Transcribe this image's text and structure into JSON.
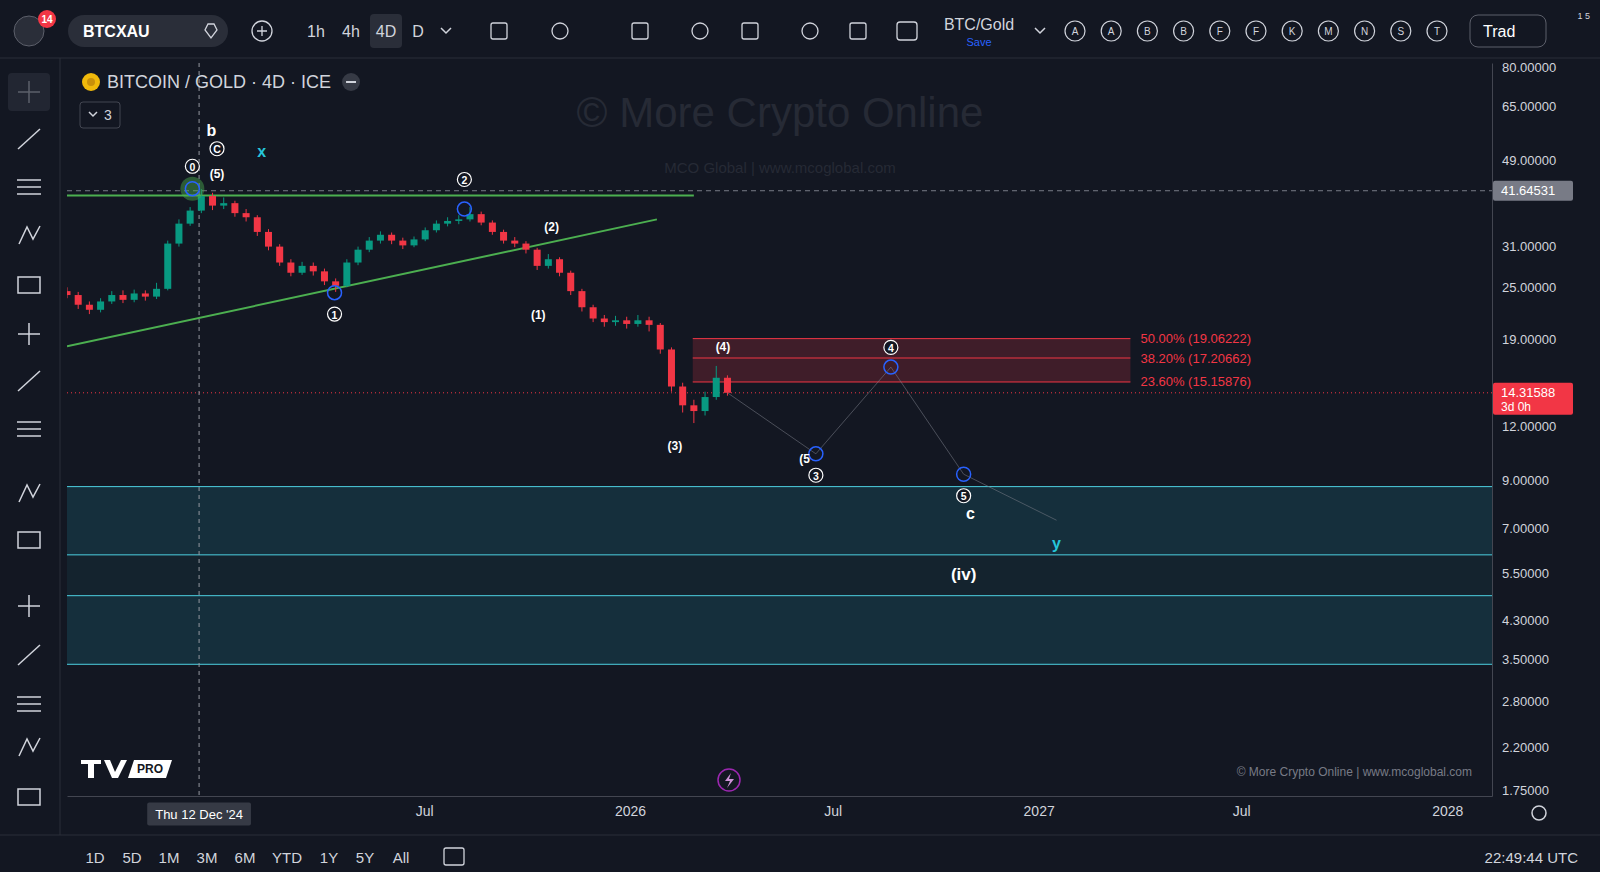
{
  "chart_data": {
    "type": "candlestick",
    "title": "BITCOIN / GOLD · 4D · ICE",
    "log": "y",
    "grid": false,
    "x": [
      "2024-08-16",
      "2024-08-26",
      "2024-09-05",
      "2024-09-15",
      "2024-09-25",
      "2024-10-05",
      "2024-10-15",
      "2024-10-25",
      "2024-11-04",
      "2024-11-14",
      "2024-11-24",
      "2024-12-04",
      "2024-12-14",
      "2024-12-24",
      "2025-01-03",
      "2025-01-13",
      "2025-01-23",
      "2025-02-02",
      "2025-02-12",
      "2025-02-22",
      "2025-03-04",
      "2025-03-14",
      "2025-03-24",
      "2025-04-03",
      "2025-04-13",
      "2025-04-23",
      "2025-05-03",
      "2025-05-13",
      "2025-05-23",
      "2025-06-02",
      "2025-06-12",
      "2025-06-22",
      "2025-07-02",
      "2025-07-12",
      "2025-07-22",
      "2025-08-01",
      "2025-08-11",
      "2025-08-21",
      "2025-08-31",
      "2025-09-10",
      "2025-09-20",
      "2025-09-30",
      "2025-10-10",
      "2025-10-20",
      "2025-10-30",
      "2025-11-09",
      "2025-11-19",
      "2025-11-29",
      "2025-12-09",
      "2025-12-19",
      "2025-12-29",
      "2026-01-08",
      "2026-01-18",
      "2026-01-28",
      "2026-02-07",
      "2026-02-17",
      "2026-02-27",
      "2026-03-09",
      "2026-03-19",
      "2026-03-29"
    ],
    "open": [
      24.5,
      24.0,
      22.8,
      22.2,
      23.2,
      24.0,
      23.4,
      24.2,
      23.8,
      24.8,
      31.5,
      35.0,
      37.5,
      40.5,
      38.5,
      39.0,
      37.0,
      36.2,
      33.5,
      31.0,
      28.5,
      27.0,
      28.0,
      27.2,
      25.8,
      25.2,
      28.5,
      30.5,
      32.0,
      33.0,
      32.0,
      31.2,
      32.2,
      33.8,
      35.0,
      35.5,
      35.8,
      36.8,
      35.2,
      33.5,
      32.0,
      31.5,
      30.5,
      28.0,
      29.0,
      27.0,
      24.5,
      22.5,
      21.2,
      20.8,
      21.0,
      20.6,
      21.0,
      20.5,
      18.0,
      14.8,
      13.4,
      13.0,
      14.0,
      15.5
    ],
    "high": [
      25.0,
      24.4,
      23.2,
      23.6,
      24.5,
      24.6,
      24.7,
      24.6,
      25.6,
      32.0,
      35.8,
      38.2,
      42.0,
      41.2,
      40.2,
      39.5,
      37.8,
      36.6,
      34.0,
      31.4,
      29.0,
      28.6,
      28.5,
      27.6,
      26.2,
      29.0,
      31.0,
      32.6,
      33.6,
      33.4,
      32.5,
      32.7,
      34.3,
      35.6,
      36.2,
      36.6,
      38.2,
      37.3,
      35.6,
      33.9,
      32.6,
      31.9,
      30.8,
      29.8,
      29.3,
      27.3,
      24.8,
      22.8,
      21.6,
      21.5,
      21.4,
      21.6,
      21.4,
      20.7,
      18.2,
      15.1,
      13.8,
      14.4,
      16.5,
      15.7
    ],
    "low": [
      23.6,
      22.3,
      21.7,
      21.9,
      22.9,
      23.0,
      23.1,
      23.3,
      23.5,
      24.6,
      31.0,
      34.6,
      37.0,
      37.6,
      37.8,
      36.3,
      35.4,
      32.8,
      30.4,
      28.0,
      26.5,
      26.7,
      26.6,
      25.3,
      24.4,
      25.0,
      28.1,
      30.1,
      31.5,
      31.4,
      30.6,
      30.9,
      31.9,
      33.4,
      34.5,
      34.9,
      35.4,
      34.7,
      33.0,
      31.5,
      30.9,
      29.9,
      27.4,
      27.6,
      26.5,
      24.0,
      22.0,
      20.8,
      20.3,
      20.4,
      20.1,
      20.3,
      19.8,
      17.6,
      14.4,
      12.9,
      12.2,
      12.7,
      13.8,
      14.1
    ],
    "close": [
      24.0,
      22.8,
      22.2,
      23.2,
      24.0,
      23.4,
      24.2,
      23.8,
      24.8,
      31.5,
      35.0,
      37.5,
      40.5,
      38.5,
      39.0,
      37.0,
      36.2,
      33.5,
      31.0,
      28.5,
      27.0,
      28.0,
      27.2,
      25.8,
      25.2,
      28.5,
      30.5,
      32.0,
      33.0,
      32.0,
      31.2,
      32.2,
      33.8,
      35.0,
      35.5,
      35.8,
      36.8,
      35.2,
      33.5,
      32.0,
      31.5,
      30.5,
      28.0,
      29.0,
      27.0,
      24.5,
      22.5,
      21.2,
      20.8,
      21.0,
      20.6,
      21.0,
      20.5,
      18.0,
      14.8,
      13.4,
      13.0,
      14.0,
      15.5,
      14.31588
    ],
    "xlim": [
      "2024-08-16",
      "2028-02-10"
    ],
    "xticks": [
      {
        "value": "2025-07-01",
        "label": "Jul"
      },
      {
        "value": "2026-01-01",
        "label": "2026"
      },
      {
        "value": "2026-07-01",
        "label": "Jul"
      },
      {
        "value": "2027-01-01",
        "label": "2027"
      },
      {
        "value": "2027-07-01",
        "label": "Jul"
      },
      {
        "value": "2028-01-01",
        "label": "2028"
      }
    ],
    "ylim": [
      1.7,
      81.8
    ],
    "yticks": [
      {
        "value": 1.75,
        "label": "1.75000"
      },
      {
        "value": 2.2,
        "label": "2.20000"
      },
      {
        "value": 2.8,
        "label": "2.80000"
      },
      {
        "value": 3.5,
        "label": "3.50000"
      },
      {
        "value": 4.3,
        "label": "4.30000"
      },
      {
        "value": 5.5,
        "label": "5.50000"
      },
      {
        "value": 7,
        "label": "7.00000"
      },
      {
        "value": 9,
        "label": "9.00000"
      },
      {
        "value": 12,
        "label": "12.00000"
      },
      {
        "value": 19,
        "label": "19.00000"
      },
      {
        "value": 25,
        "label": "25.00000"
      },
      {
        "value": 31,
        "label": "31.00000"
      },
      {
        "value": 49,
        "label": "49.00000"
      },
      {
        "value": 65,
        "label": "65.00000"
      },
      {
        "value": 80,
        "label": "80.00000"
      }
    ],
    "levels": [
      {
        "value": 41.64531,
        "label": "41.64531",
        "color": "#787b86",
        "line_style": "dashed"
      },
      {
        "value": 14.31588,
        "label": "14.31588",
        "sublabel": "3d 0h",
        "color": "#f23645",
        "line_style": "dotted"
      }
    ],
    "fib": {
      "x": [
        "2026-02-26",
        "2027-03-24"
      ],
      "levels": [
        {
          "value": 19.06222,
          "label": "50.00% (19.06222)"
        },
        {
          "value": 17.20662,
          "label": "38.20% (17.20662)"
        },
        {
          "value": 15.15876,
          "label": "23.60% (15.15876)"
        }
      ]
    },
    "zones": [
      8.72,
      6.08,
      4.9,
      3.41
    ],
    "lines": [
      {
        "x": [
          "2024-08-16",
          "2026-02-27"
        ],
        "y": [
          40.6,
          40.6
        ],
        "color": "#4caf50"
      },
      {
        "x": [
          "2024-08-16",
          "2026-01-25"
        ],
        "y": [
          18.3,
          35.8
        ],
        "color": "#4caf50"
      }
    ],
    "projection": {
      "x": [
        "2026-03-29",
        "2026-06-16",
        "2026-08-22",
        "2026-10-26",
        "2027-01-17"
      ],
      "y": [
        14.31588,
        10.37,
        16.4,
        9.31,
        7.3
      ]
    },
    "markers": [
      {
        "x": "2024-12-06",
        "y": 42.1,
        "marker": "highlight"
      },
      {
        "x": "2025-04-12",
        "y": 24.3
      },
      {
        "x": "2025-08-06",
        "y": 37.8
      },
      {
        "x": "2026-06-16",
        "y": 10.37
      },
      {
        "x": "2026-08-22",
        "y": 16.4
      },
      {
        "x": "2026-10-26",
        "y": 9.31
      }
    ],
    "annotations": [
      {
        "text": "b",
        "x": "2024-12-23",
        "y": 57.3
      },
      {
        "text": "C",
        "x": "2024-12-28",
        "y": 52.0,
        "marker": "circle"
      },
      {
        "text": "0",
        "x": "2024-12-06",
        "y": 47.4,
        "marker": "circle"
      },
      {
        "text": "(5)",
        "x": "2024-12-28",
        "y": 45.6
      },
      {
        "text": "x",
        "x": "2025-02-06",
        "y": 51.2,
        "color": "#26c6da"
      },
      {
        "text": "2",
        "x": "2025-08-06",
        "y": 44.2,
        "marker": "circle"
      },
      {
        "text": "1",
        "x": "2025-04-12",
        "y": 21.7,
        "marker": "circle"
      },
      {
        "text": "(2)",
        "x": "2025-10-23",
        "y": 34.3
      },
      {
        "text": "(1)",
        "x": "2025-10-11",
        "y": 21.6
      },
      {
        "text": "(3)",
        "x": "2026-02-10",
        "y": 10.8
      },
      {
        "text": "(4)",
        "x": "2026-03-25",
        "y": 18.2
      },
      {
        "text": "4",
        "x": "2026-08-22",
        "y": 18.2,
        "marker": "circle"
      },
      {
        "text": "(5",
        "x": "2026-06-06",
        "y": 10.1
      },
      {
        "text": "3",
        "x": "2026-06-16",
        "y": 9.26,
        "marker": "circle"
      },
      {
        "text": "5",
        "x": "2026-10-26",
        "y": 8.31,
        "marker": "circle"
      },
      {
        "text": "c",
        "x": "2026-11-01",
        "y": 7.58
      },
      {
        "text": "y",
        "x": "2027-01-17",
        "y": 6.45,
        "color": "#26c6da"
      },
      {
        "text": "(iv)",
        "x": "2026-10-26",
        "y": 5.49
      }
    ],
    "crosshair": {
      "x": "2024-12-12",
      "label": "Thu 12 Dec '24"
    }
  },
  "ui": {
    "badge": "14",
    "symbol": "BTCXAU",
    "timeframes": [
      "1h",
      "4h",
      "4D",
      "D"
    ],
    "active_timeframe": "4D",
    "layout_name": "BTC/Gold",
    "layout_save": "Save",
    "alerts": [
      "A",
      "A",
      "B",
      "B",
      "F",
      "F",
      "K",
      "M",
      "N",
      "S",
      "T"
    ],
    "trade": "Trad",
    "corner": "1 5",
    "legend_count": "3",
    "watermark": "© More Crypto Online",
    "watermark_sub": "MCO Global  |  www.mcoglobal.com",
    "copyright": "© More Crypto Online  |  www.mcoglobal.com",
    "pro": "PRO",
    "ranges": [
      "1D",
      "5D",
      "1M",
      "3M",
      "6M",
      "YTD",
      "1Y",
      "5Y",
      "All"
    ],
    "clock": "22:49:44 UTC"
  }
}
